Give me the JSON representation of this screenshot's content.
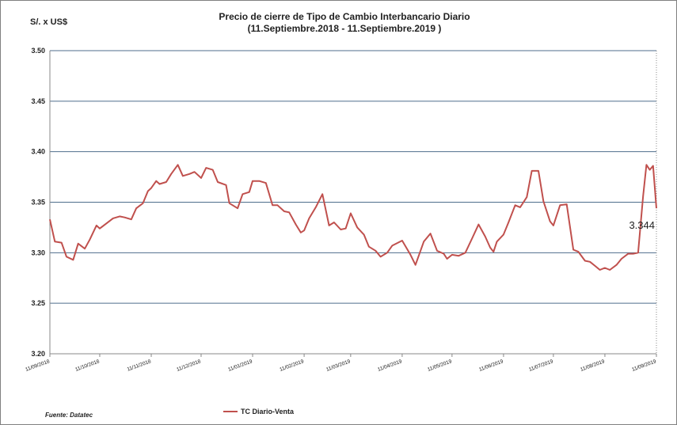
{
  "chart_data": {
    "type": "line",
    "title_line1": "Precio de cierre de Tipo de Cambio Interbancario Diario",
    "title_line2": "(11.Septiembre.2018 - 11.Septiembre.2019 )",
    "ylabel": "S/. x US$",
    "ylim": [
      3.2,
      3.5
    ],
    "yticks": [
      "3.20",
      "3.25",
      "3.30",
      "3.35",
      "3.40",
      "3.45",
      "3.50"
    ],
    "xticks": [
      "11/09/2018",
      "11/10/2018",
      "11/11/2018",
      "11/12/2018",
      "11/01/2019",
      "11/02/2019",
      "11/03/2019",
      "11/04/2019",
      "11/05/2019",
      "11/06/2019",
      "11/07/2019",
      "11/08/2019",
      "11/09/2019"
    ],
    "grid": true,
    "legend_position": "bottom",
    "series": [
      {
        "name": "TC Diario-Venta",
        "color": "#C0504D",
        "x": [
          "2018-09-11",
          "2018-09-14",
          "2018-09-18",
          "2018-09-21",
          "2018-09-25",
          "2018-09-28",
          "2018-10-02",
          "2018-10-05",
          "2018-10-09",
          "2018-10-11",
          "2018-10-15",
          "2018-10-19",
          "2018-10-23",
          "2018-10-26",
          "2018-10-30",
          "2018-11-02",
          "2018-11-06",
          "2018-11-09",
          "2018-11-11",
          "2018-11-14",
          "2018-11-16",
          "2018-11-20",
          "2018-11-23",
          "2018-11-27",
          "2018-11-30",
          "2018-12-04",
          "2018-12-07",
          "2018-12-11",
          "2018-12-14",
          "2018-12-18",
          "2018-12-21",
          "2018-12-26",
          "2018-12-28",
          "2019-01-02",
          "2019-01-05",
          "2019-01-09",
          "2019-01-11",
          "2019-01-15",
          "2019-01-19",
          "2019-01-23",
          "2019-01-26",
          "2019-01-30",
          "2019-02-02",
          "2019-02-06",
          "2019-02-09",
          "2019-02-11",
          "2019-02-14",
          "2019-02-18",
          "2019-02-22",
          "2019-02-26",
          "2019-03-01",
          "2019-03-05",
          "2019-03-08",
          "2019-03-11",
          "2019-03-15",
          "2019-03-19",
          "2019-03-22",
          "2019-03-26",
          "2019-03-29",
          "2019-04-02",
          "2019-04-05",
          "2019-04-11",
          "2019-04-16",
          "2019-04-19",
          "2019-04-24",
          "2019-04-28",
          "2019-05-02",
          "2019-05-06",
          "2019-05-08",
          "2019-05-11",
          "2019-05-15",
          "2019-05-19",
          "2019-05-23",
          "2019-05-27",
          "2019-05-31",
          "2019-06-03",
          "2019-06-05",
          "2019-06-07",
          "2019-06-11",
          "2019-06-14",
          "2019-06-18",
          "2019-06-21",
          "2019-06-25",
          "2019-06-28",
          "2019-07-02",
          "2019-07-05",
          "2019-07-09",
          "2019-07-11",
          "2019-07-15",
          "2019-07-19",
          "2019-07-23",
          "2019-07-26",
          "2019-07-30",
          "2019-08-02",
          "2019-08-05",
          "2019-08-08",
          "2019-08-11",
          "2019-08-14",
          "2019-08-18",
          "2019-08-21",
          "2019-08-25",
          "2019-08-28",
          "2019-08-31",
          "2019-09-03",
          "2019-09-05",
          "2019-09-07",
          "2019-09-09",
          "2019-09-11"
        ],
        "values": [
          3.333,
          3.311,
          3.31,
          3.296,
          3.293,
          3.309,
          3.304,
          3.313,
          3.327,
          3.324,
          3.329,
          3.334,
          3.336,
          3.335,
          3.333,
          3.344,
          3.349,
          3.361,
          3.364,
          3.371,
          3.368,
          3.37,
          3.378,
          3.387,
          3.376,
          3.378,
          3.38,
          3.374,
          3.384,
          3.382,
          3.37,
          3.367,
          3.349,
          3.344,
          3.358,
          3.36,
          3.371,
          3.371,
          3.369,
          3.347,
          3.347,
          3.341,
          3.34,
          3.328,
          3.32,
          3.322,
          3.334,
          3.345,
          3.358,
          3.327,
          3.33,
          3.323,
          3.324,
          3.339,
          3.325,
          3.318,
          3.306,
          3.302,
          3.296,
          3.3,
          3.307,
          3.312,
          3.298,
          3.288,
          3.311,
          3.319,
          3.302,
          3.299,
          3.294,
          3.298,
          3.297,
          3.3,
          3.314,
          3.328,
          3.316,
          3.305,
          3.301,
          3.311,
          3.318,
          3.33,
          3.347,
          3.345,
          3.355,
          3.381,
          3.381,
          3.351,
          3.331,
          3.327,
          3.347,
          3.348,
          3.303,
          3.301,
          3.292,
          3.291,
          3.287,
          3.283,
          3.285,
          3.283,
          3.288,
          3.294,
          3.299,
          3.299,
          3.3,
          3.356,
          3.387,
          3.382,
          3.386,
          3.344
        ]
      }
    ],
    "annotations": [
      {
        "text": "3.344"
      }
    ],
    "source": "Fuente: Datatec"
  }
}
